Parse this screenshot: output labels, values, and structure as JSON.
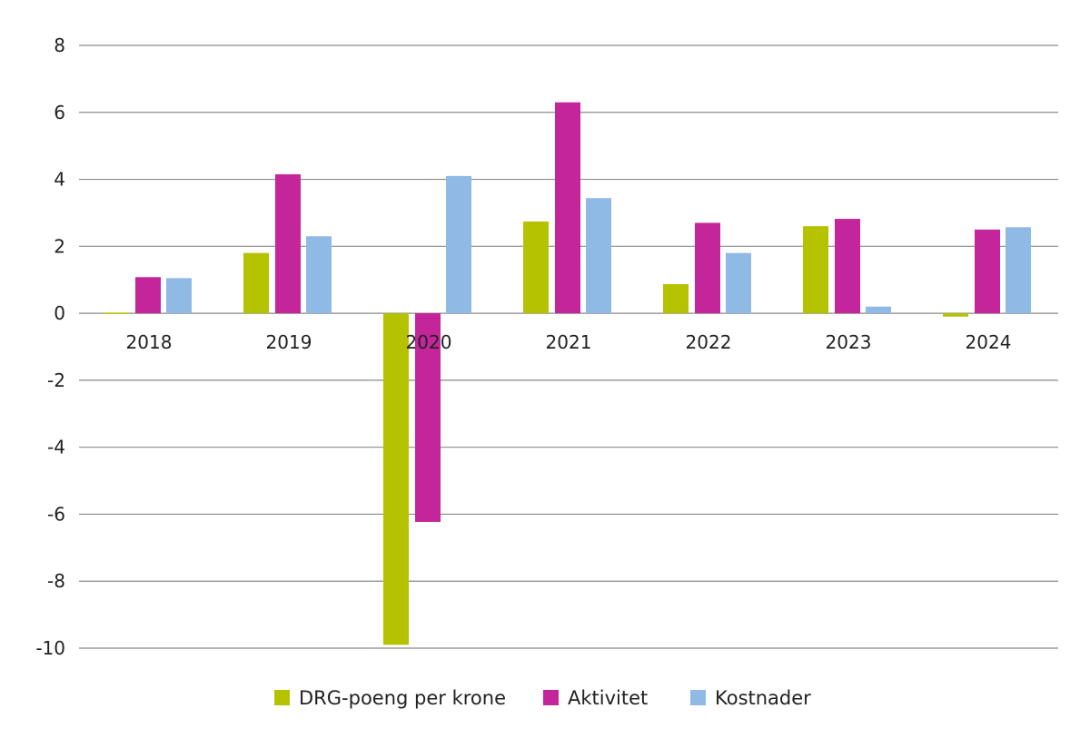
{
  "chart_data": {
    "type": "bar",
    "title": "",
    "xlabel": "",
    "ylabel": "",
    "ylim": [
      -10,
      8
    ],
    "yticks": [
      "8",
      "6",
      "4",
      "2",
      "0",
      "-2",
      "-4",
      "-6",
      "-8",
      "-10"
    ],
    "grid": true,
    "legend_position": "bottom",
    "categories": [
      "2018",
      "2019",
      "2020",
      "2021",
      "2022",
      "2023",
      "2024"
    ],
    "series": [
      {
        "name": "DRG-poeng per krone",
        "color": "#b5c200",
        "values": [
          0.02,
          1.8,
          -9.9,
          2.74,
          0.87,
          2.6,
          -0.1
        ]
      },
      {
        "name": "Aktivitet",
        "color": "#c4259a",
        "values": [
          1.08,
          4.15,
          -6.23,
          6.3,
          2.7,
          2.82,
          2.5
        ]
      },
      {
        "name": "Kostnader",
        "color": "#8fbae6",
        "values": [
          1.05,
          2.3,
          4.1,
          3.44,
          1.8,
          0.2,
          2.57
        ]
      }
    ]
  }
}
